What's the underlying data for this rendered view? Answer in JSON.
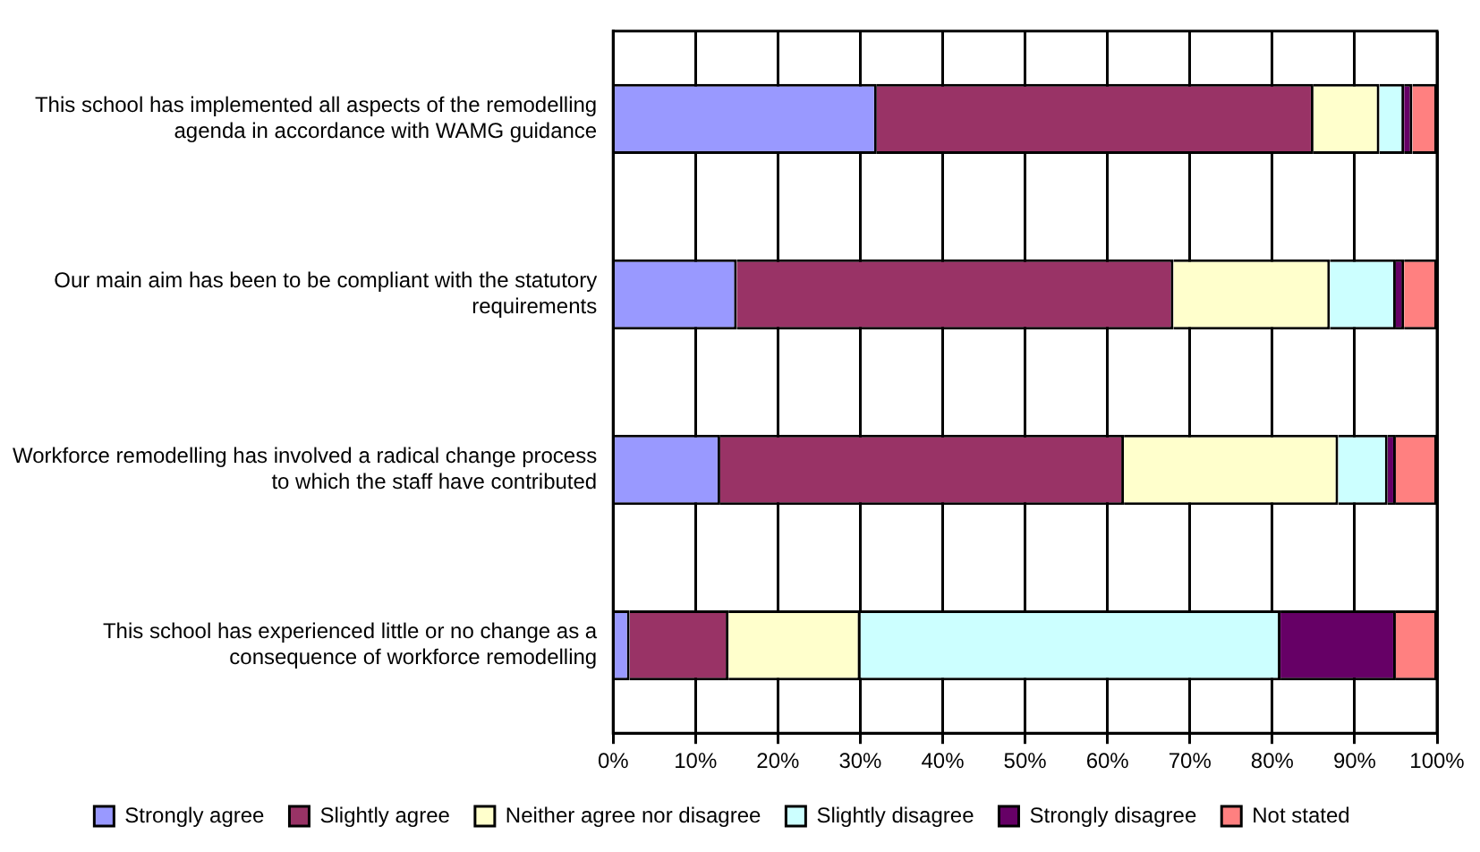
{
  "chart_data": {
    "type": "bar",
    "orientation": "horizontal",
    "stacked": true,
    "categories": [
      "This school has implemented all aspects of the remodelling agenda in accordance with WAMG guidance",
      "Our main aim has been to be compliant with the statutory requirements",
      "Workforce remodelling has involved a radical change process to which the staff have contributed",
      "This school has experienced little or no change as a consequence of workforce remodelling"
    ],
    "series": [
      {
        "name": "Strongly agree",
        "color": "#9999ff",
        "values": [
          32,
          15,
          13,
          2
        ]
      },
      {
        "name": "Slightly agree",
        "color": "#993366",
        "values": [
          53,
          53,
          49,
          12
        ]
      },
      {
        "name": "Neither agree nor disagree",
        "color": "#ffffcc",
        "values": [
          8,
          19,
          26,
          16
        ]
      },
      {
        "name": "Slightly disagree",
        "color": "#ccffff",
        "values": [
          3,
          8,
          6,
          51
        ]
      },
      {
        "name": "Strongly disagree",
        "color": "#660066",
        "values": [
          1,
          1,
          1,
          14
        ]
      },
      {
        "name": "Not stated",
        "color": "#ff8080",
        "values": [
          3,
          4,
          5,
          5
        ]
      }
    ],
    "xlim": [
      0,
      100
    ],
    "xticks": [
      {
        "value": 0,
        "label": "0%"
      },
      {
        "value": 10,
        "label": "10%"
      },
      {
        "value": 20,
        "label": "20%"
      },
      {
        "value": 30,
        "label": "30%"
      },
      {
        "value": 40,
        "label": "40%"
      },
      {
        "value": 50,
        "label": "50%"
      },
      {
        "value": 60,
        "label": "60%"
      },
      {
        "value": 70,
        "label": "70%"
      },
      {
        "value": 80,
        "label": "80%"
      },
      {
        "value": 90,
        "label": "90%"
      },
      {
        "value": 100,
        "label": "100%"
      }
    ],
    "grid": "x",
    "legend": "bottom"
  }
}
